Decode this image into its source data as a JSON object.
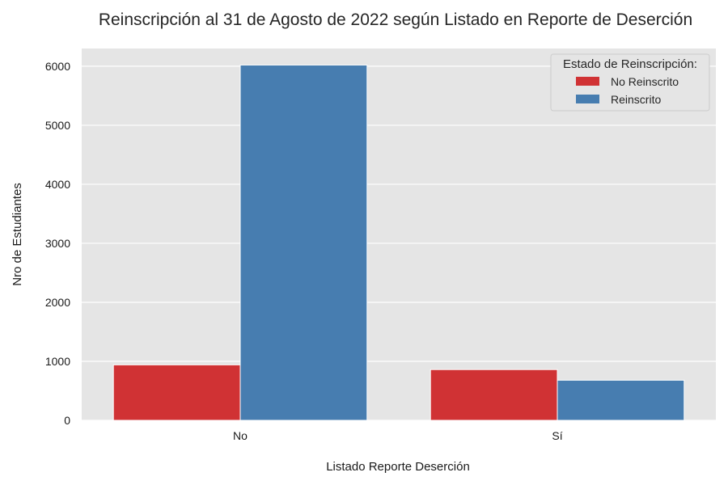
{
  "chart_data": {
    "type": "bar",
    "title": "Reinscripción al 31 de Agosto de 2022 según Listado en Reporte de Deserción",
    "xlabel": "Listado Reporte Deserción",
    "ylabel": "Nro de Estudiantes",
    "categories": [
      "No",
      "Sí"
    ],
    "series": [
      {
        "name": "No Reinscrito",
        "color": "#d03234",
        "values": [
          940,
          860
        ]
      },
      {
        "name": "Reinscrito",
        "color": "#477db0",
        "values": [
          6020,
          680
        ]
      }
    ],
    "ylim": [
      0,
      6300
    ],
    "yticks": [
      0,
      1000,
      2000,
      3000,
      4000,
      5000,
      6000
    ],
    "ytick_labels": [
      "0",
      "1000",
      "2000",
      "3000",
      "4000",
      "5000",
      "6000"
    ],
    "grid": true,
    "legend": {
      "title": "Estado de Reinscripción:",
      "placement": "top-right"
    },
    "colors": {
      "plot_background": "#e5e5e5",
      "grid": "#ffffff"
    }
  }
}
